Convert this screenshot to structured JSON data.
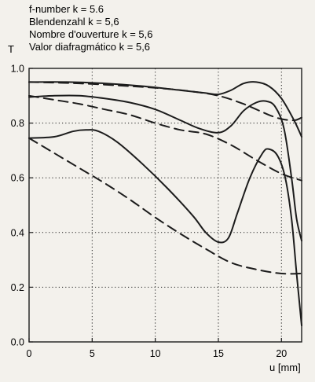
{
  "chart_data": {
    "type": "line",
    "title_lines": [
      "f-number k = 5.6",
      "Blendenzahl k = 5,6",
      "Nombre d'ouverture k = 5,6",
      "Valor diafragmático k = 5,6"
    ],
    "ylabel": "T",
    "xlabel": "u [mm]",
    "xlim": [
      0,
      21.6
    ],
    "ylim": [
      0,
      1.0
    ],
    "x_ticks": [
      0,
      5,
      10,
      15,
      20
    ],
    "x_tick_labels": [
      "0",
      "5",
      "10",
      "15",
      "20"
    ],
    "y_ticks": [
      0,
      0.2,
      0.4,
      0.6,
      0.8,
      1.0
    ],
    "y_tick_labels": [
      "0.0",
      "0.2",
      "0.4",
      "0.6",
      "0.8",
      "1.0"
    ],
    "grid": "dotted",
    "colors": {
      "ink": "#1c1c1c",
      "background": "#f3f1ec"
    },
    "series": [
      {
        "style": "solid",
        "points": [
          [
            0,
            0.95
          ],
          [
            3,
            0.95
          ],
          [
            6,
            0.945
          ],
          [
            9,
            0.935
          ],
          [
            12,
            0.92
          ],
          [
            14,
            0.91
          ],
          [
            15,
            0.905
          ],
          [
            16,
            0.92
          ],
          [
            17,
            0.945
          ],
          [
            18,
            0.95
          ],
          [
            19,
            0.935
          ],
          [
            20,
            0.89
          ],
          [
            21,
            0.81
          ],
          [
            21.6,
            0.75
          ]
        ]
      },
      {
        "style": "dashed",
        "points": [
          [
            0,
            0.95
          ],
          [
            4,
            0.945
          ],
          [
            8,
            0.935
          ],
          [
            11,
            0.925
          ],
          [
            13,
            0.915
          ],
          [
            15,
            0.9
          ],
          [
            17,
            0.87
          ],
          [
            19,
            0.83
          ],
          [
            20,
            0.815
          ],
          [
            21,
            0.81
          ],
          [
            21.6,
            0.82
          ]
        ]
      },
      {
        "style": "solid",
        "points": [
          [
            0,
            0.895
          ],
          [
            2,
            0.9
          ],
          [
            4,
            0.9
          ],
          [
            6,
            0.89
          ],
          [
            8,
            0.875
          ],
          [
            10,
            0.85
          ],
          [
            12,
            0.81
          ],
          [
            13.5,
            0.78
          ],
          [
            15,
            0.765
          ],
          [
            16,
            0.79
          ],
          [
            17,
            0.845
          ],
          [
            18,
            0.875
          ],
          [
            18.8,
            0.88
          ],
          [
            19.5,
            0.86
          ],
          [
            20.2,
            0.78
          ],
          [
            20.8,
            0.6
          ],
          [
            21.2,
            0.45
          ],
          [
            21.6,
            0.37
          ]
        ]
      },
      {
        "style": "dashed",
        "points": [
          [
            0,
            0.9
          ],
          [
            2,
            0.885
          ],
          [
            4,
            0.87
          ],
          [
            6,
            0.85
          ],
          [
            8,
            0.83
          ],
          [
            10,
            0.8
          ],
          [
            12,
            0.775
          ],
          [
            14,
            0.76
          ],
          [
            16,
            0.72
          ],
          [
            18,
            0.665
          ],
          [
            20,
            0.615
          ],
          [
            21.6,
            0.59
          ]
        ]
      },
      {
        "style": "solid",
        "points": [
          [
            0,
            0.745
          ],
          [
            2,
            0.75
          ],
          [
            3.5,
            0.77
          ],
          [
            4.5,
            0.775
          ],
          [
            5.5,
            0.77
          ],
          [
            7,
            0.73
          ],
          [
            9,
            0.65
          ],
          [
            11,
            0.56
          ],
          [
            13,
            0.46
          ],
          [
            14,
            0.4
          ],
          [
            15,
            0.365
          ],
          [
            15.8,
            0.38
          ],
          [
            16.5,
            0.47
          ],
          [
            17.5,
            0.6
          ],
          [
            18.5,
            0.69
          ],
          [
            19,
            0.705
          ],
          [
            19.7,
            0.68
          ],
          [
            20.3,
            0.6
          ],
          [
            20.8,
            0.45
          ],
          [
            21.2,
            0.25
          ],
          [
            21.6,
            0.06
          ]
        ]
      },
      {
        "style": "dashed",
        "points": [
          [
            0,
            0.745
          ],
          [
            2,
            0.69
          ],
          [
            4,
            0.635
          ],
          [
            6,
            0.58
          ],
          [
            8,
            0.52
          ],
          [
            10,
            0.455
          ],
          [
            12,
            0.395
          ],
          [
            14,
            0.34
          ],
          [
            16,
            0.29
          ],
          [
            18,
            0.265
          ],
          [
            20,
            0.25
          ],
          [
            21.6,
            0.25
          ]
        ]
      }
    ]
  }
}
